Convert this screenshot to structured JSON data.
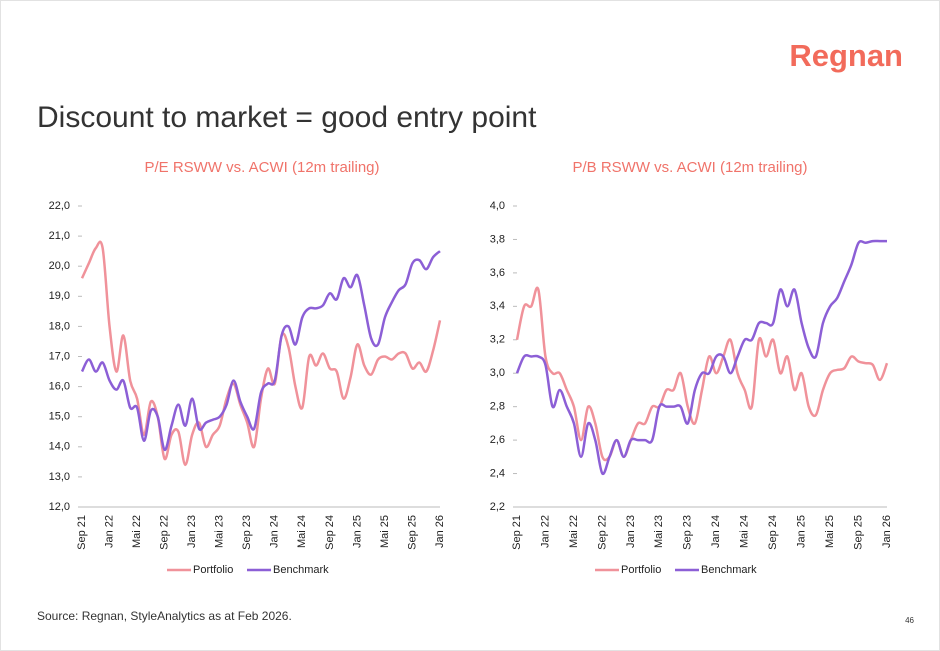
{
  "logo": "Regnan",
  "title": "Discount to market = good entry point",
  "source": "Source: Regnan, StyleAnalytics as at Feb 2026.",
  "page_number": "46",
  "chart_data": [
    {
      "type": "line",
      "title": "P/E RSWW vs. ACWI (12m trailing)",
      "legend": "bottom",
      "categories": [
        "Sep 21",
        null,
        null,
        null,
        "Jan 22",
        null,
        null,
        null,
        "Mai 22",
        null,
        null,
        null,
        "Sep 22",
        null,
        null,
        null,
        "Jan 23",
        null,
        null,
        null,
        "Mai 23",
        null,
        null,
        null,
        "Sep 23",
        null,
        null,
        null,
        "Jan 24",
        null,
        null,
        null,
        "Mai 24",
        null,
        null,
        null,
        "Sep 24",
        null,
        null,
        null,
        "Jan 25",
        null,
        null,
        null,
        "Mai 25",
        null,
        null,
        null,
        "Sep 25",
        null,
        null,
        null,
        "Jan 26"
      ],
      "ylim": [
        12,
        22
      ],
      "yticks": [
        {
          "value": 12,
          "label": "12,0"
        },
        {
          "value": 13,
          "label": "13,0"
        },
        {
          "value": 14,
          "label": "14,0"
        },
        {
          "value": 15,
          "label": "15,0"
        },
        {
          "value": 16,
          "label": "16,0"
        },
        {
          "value": 17,
          "label": "17,0"
        },
        {
          "value": 18,
          "label": "18,0"
        },
        {
          "value": 19,
          "label": "19,0"
        },
        {
          "value": 20,
          "label": "20,0"
        },
        {
          "value": 21,
          "label": "21,0"
        },
        {
          "value": 22,
          "label": "22,0"
        }
      ],
      "series": [
        {
          "name": "Portfolio",
          "color": "#f0929a",
          "values": [
            19.6,
            20.1,
            20.6,
            20.6,
            18.0,
            16.5,
            17.7,
            16.2,
            15.6,
            14.4,
            15.5,
            15.0,
            13.6,
            14.4,
            14.5,
            13.4,
            14.4,
            14.8,
            14.0,
            14.4,
            14.7,
            15.6,
            16.1,
            15.4,
            14.8,
            14.0,
            15.6,
            16.6,
            16.1,
            17.7,
            17.3,
            16.0,
            15.3,
            17.0,
            16.7,
            17.1,
            16.6,
            16.5,
            15.6,
            16.3,
            17.4,
            16.7,
            16.4,
            16.9,
            17.0,
            16.9,
            17.1,
            17.1,
            16.6,
            16.8,
            16.5,
            17.2,
            18.2
          ]
        },
        {
          "name": "Benchmark",
          "color": "#8c5fd6",
          "values": [
            16.5,
            16.9,
            16.5,
            16.8,
            16.2,
            15.9,
            16.2,
            15.3,
            15.3,
            14.2,
            15.2,
            15.0,
            13.9,
            14.7,
            15.4,
            14.7,
            15.6,
            14.6,
            14.8,
            14.9,
            15.0,
            15.4,
            16.2,
            15.5,
            15.0,
            14.6,
            15.8,
            16.1,
            16.2,
            17.7,
            18.0,
            17.4,
            18.3,
            18.6,
            18.6,
            18.7,
            19.1,
            18.9,
            19.6,
            19.3,
            19.7,
            18.7,
            17.6,
            17.4,
            18.3,
            18.8,
            19.2,
            19.4,
            20.1,
            20.2,
            19.9,
            20.3,
            20.5
          ]
        }
      ]
    },
    {
      "type": "line",
      "title": "P/B RSWW vs. ACWI (12m trailing)",
      "legend": "bottom",
      "categories": [
        "Sep 21",
        null,
        null,
        null,
        "Jan 22",
        null,
        null,
        null,
        "Mai 22",
        null,
        null,
        null,
        "Sep 22",
        null,
        null,
        null,
        "Jan 23",
        null,
        null,
        null,
        "Mai 23",
        null,
        null,
        null,
        "Sep 23",
        null,
        null,
        null,
        "Jan 24",
        null,
        null,
        null,
        "Mai 24",
        null,
        null,
        null,
        "Sep 24",
        null,
        null,
        null,
        "Jan 25",
        null,
        null,
        null,
        "Mai 25",
        null,
        null,
        null,
        "Sep 25",
        null,
        null,
        null,
        "Jan 26"
      ],
      "ylim": [
        2.2,
        4.0
      ],
      "yticks": [
        {
          "value": 2.2,
          "label": "2,2"
        },
        {
          "value": 2.4,
          "label": "2,4"
        },
        {
          "value": 2.6,
          "label": "2,6"
        },
        {
          "value": 2.8,
          "label": "2,8"
        },
        {
          "value": 3.0,
          "label": "3,0"
        },
        {
          "value": 3.2,
          "label": "3,2"
        },
        {
          "value": 3.4,
          "label": "3,4"
        },
        {
          "value": 3.6,
          "label": "3,6"
        },
        {
          "value": 3.8,
          "label": "3,8"
        },
        {
          "value": 4.0,
          "label": "4,0"
        }
      ],
      "series": [
        {
          "name": "Portfolio",
          "color": "#f0929a",
          "values": [
            3.2,
            3.4,
            3.4,
            3.5,
            3.1,
            3.0,
            3.0,
            2.9,
            2.8,
            2.6,
            2.8,
            2.7,
            2.5,
            2.5,
            2.6,
            2.5,
            2.6,
            2.7,
            2.7,
            2.8,
            2.8,
            2.9,
            2.9,
            3.0,
            2.8,
            2.7,
            2.9,
            3.1,
            3.0,
            3.1,
            3.2,
            3.0,
            2.9,
            2.8,
            3.2,
            3.1,
            3.2,
            3.0,
            3.1,
            2.9,
            3.0,
            2.8,
            2.75,
            2.9,
            3.0,
            3.02,
            3.03,
            3.1,
            3.07,
            3.06,
            3.05,
            2.96,
            3.06
          ]
        },
        {
          "name": "Benchmark",
          "color": "#8c5fd6",
          "values": [
            3.0,
            3.1,
            3.1,
            3.1,
            3.05,
            2.8,
            2.9,
            2.8,
            2.7,
            2.5,
            2.7,
            2.6,
            2.4,
            2.5,
            2.6,
            2.5,
            2.6,
            2.6,
            2.6,
            2.6,
            2.8,
            2.8,
            2.8,
            2.8,
            2.7,
            2.9,
            3.0,
            3.0,
            3.1,
            3.1,
            3.0,
            3.1,
            3.2,
            3.2,
            3.3,
            3.3,
            3.3,
            3.5,
            3.4,
            3.5,
            3.3,
            3.15,
            3.1,
            3.3,
            3.4,
            3.45,
            3.55,
            3.65,
            3.78,
            3.78,
            3.79,
            3.79,
            3.79
          ]
        }
      ]
    }
  ]
}
